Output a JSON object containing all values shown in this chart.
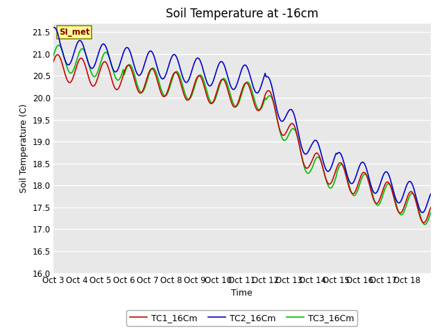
{
  "title": "Soil Temperature at -16cm",
  "xlabel": "Time",
  "ylabel": "Soil Temperature (C)",
  "ylim": [
    16.0,
    21.7
  ],
  "yticks": [
    16.0,
    16.5,
    17.0,
    17.5,
    18.0,
    18.5,
    19.0,
    19.5,
    20.0,
    20.5,
    21.0,
    21.5
  ],
  "x_labels": [
    "Oct 3",
    "Oct 4",
    "Oct 5",
    "Oct 6",
    "Oct 7",
    "Oct 8",
    "Oct 9",
    "Oct 10",
    "Oct 11",
    "Oct 12",
    "Oct 13",
    "Oct 14",
    "Oct 15",
    "Oct 16",
    "Oct 17",
    "Oct 18"
  ],
  "num_days": 16,
  "pts_per_day": 24,
  "color_tc1": "#cc0000",
  "color_tc2": "#0000cc",
  "color_tc3": "#00bb00",
  "bg_color": "#e8e8e8",
  "plot_bg_color": "#e8e8e8",
  "annotation_text": "SI_met",
  "annotation_bg": "#ffff99",
  "annotation_border": "#888800",
  "legend_entries": [
    "TC1_16Cm",
    "TC2_16Cm",
    "TC3_16Cm"
  ],
  "title_fontsize": 12,
  "axis_label_fontsize": 9,
  "tick_fontsize": 8.5,
  "linewidth": 1.2
}
